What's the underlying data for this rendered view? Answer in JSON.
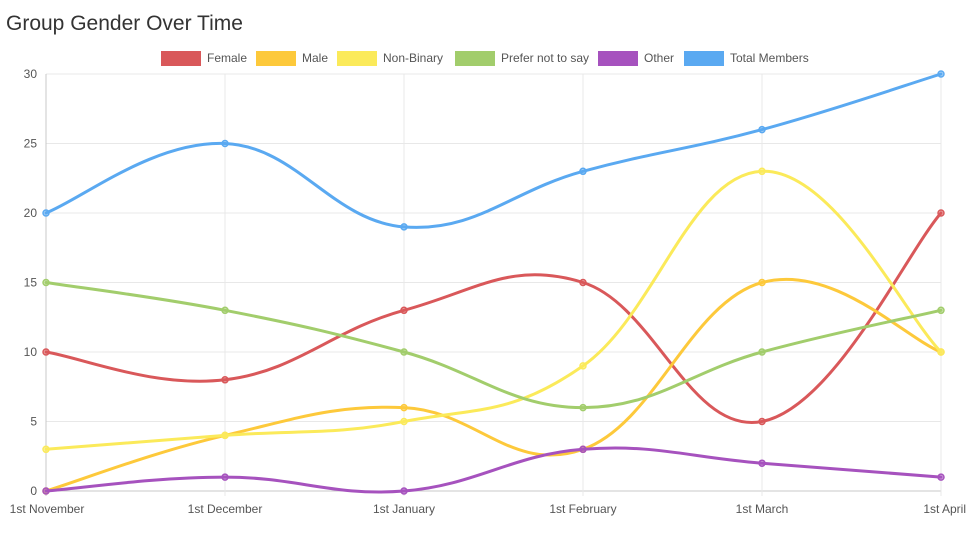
{
  "chart_data": {
    "type": "line",
    "title": "Group Gender Over Time",
    "xlabel": "",
    "ylabel": "",
    "categories": [
      "1st November",
      "1st December",
      "1st January",
      "1st February",
      "1st March",
      "1st April"
    ],
    "ylim": [
      0,
      30
    ],
    "yticks": [
      0,
      5,
      10,
      15,
      20,
      25,
      30
    ],
    "grid": true,
    "legend_position": "top",
    "smooth": true,
    "series": [
      {
        "name": "Female",
        "color": "#d9585a",
        "values": [
          10,
          8,
          13,
          15,
          5,
          20
        ]
      },
      {
        "name": "Male",
        "color": "#fdc93b",
        "values": [
          0,
          4,
          6,
          3,
          15,
          10
        ]
      },
      {
        "name": "Non-Binary",
        "color": "#fbea5a",
        "values": [
          3,
          4,
          5,
          9,
          23,
          10
        ]
      },
      {
        "name": "Prefer not to say",
        "color": "#a2cd6c",
        "values": [
          15,
          13,
          10,
          6,
          10,
          13
        ]
      },
      {
        "name": "Other",
        "color": "#a652be",
        "values": [
          0,
          1,
          0,
          3,
          2,
          1
        ]
      },
      {
        "name": "Total Members",
        "color": "#5aa9f1",
        "values": [
          20,
          25,
          19,
          23,
          26,
          30
        ]
      }
    ]
  }
}
